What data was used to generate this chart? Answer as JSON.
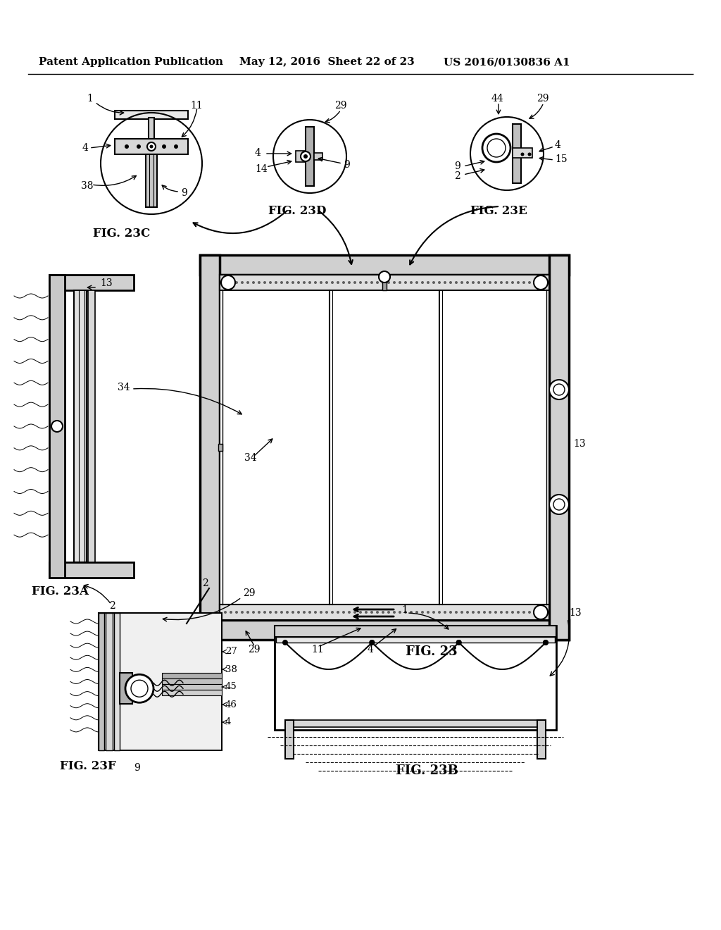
{
  "header_left": "Patent Application Publication",
  "header_mid": "May 12, 2016  Sheet 22 of 23",
  "header_right": "US 2016/0130836 A1",
  "bg_color": "#ffffff",
  "line_color": "#000000",
  "fig_labels": {
    "fig23": "FIG. 23",
    "fig23A": "FIG. 23A",
    "fig23B": "FIG. 23B",
    "fig23C": "FIG. 23C",
    "fig23D": "FIG. 23D",
    "fig23E": "FIG. 23E",
    "fig23F": "FIG. 23F"
  }
}
